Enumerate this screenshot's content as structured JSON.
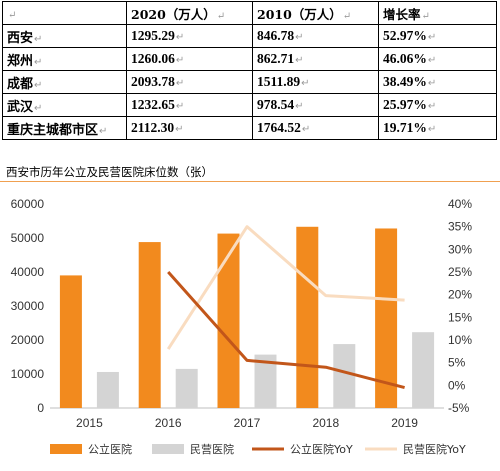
{
  "table": {
    "mark": "↵",
    "header": [
      "",
      "2020（万人）",
      "2010（万人）",
      "增长率"
    ],
    "rows": [
      [
        "西安",
        "1295.29",
        "846.78",
        "52.97%"
      ],
      [
        "郑州",
        "1260.06",
        "862.71",
        "46.06%"
      ],
      [
        "成都",
        "2093.78",
        "1511.89",
        "38.49%"
      ],
      [
        "武汉",
        "1232.65",
        "978.54",
        "25.97%"
      ],
      [
        "重庆主城都市区",
        "2112.30",
        "1764.52",
        "19.71%"
      ]
    ]
  },
  "chart_data": {
    "type": "bar",
    "title": "西安市历年公立及民营医院床位数（张）",
    "categories": [
      "2015",
      "2016",
      "2017",
      "2018",
      "2019"
    ],
    "series": [
      {
        "name": "公立医院",
        "kind": "bar",
        "axis": "left",
        "values": [
          39000,
          48800,
          51300,
          53300,
          52800
        ]
      },
      {
        "name": "民营医院",
        "kind": "bar",
        "axis": "left",
        "values": [
          10600,
          11500,
          15700,
          18800,
          22300
        ]
      },
      {
        "name": "公立医院YoY",
        "kind": "line",
        "axis": "right",
        "values": [
          null,
          25.0,
          5.5,
          4.0,
          -0.5
        ]
      },
      {
        "name": "民营医院YoY",
        "kind": "line",
        "axis": "right",
        "values": [
          null,
          8.0,
          35.0,
          19.8,
          18.8
        ]
      }
    ],
    "ylim": [
      0,
      60000
    ],
    "yticks": [
      "0",
      "10000",
      "20000",
      "30000",
      "40000",
      "50000",
      "60000"
    ],
    "y2lim": [
      -5,
      40
    ],
    "y2ticks": [
      "-5%",
      "0%",
      "5%",
      "10%",
      "15%",
      "20%",
      "25%",
      "30%",
      "35%",
      "40%"
    ],
    "legend": "bottom",
    "colors": {
      "public_bar": "#f28a1e",
      "private_bar": "#d4d4d4",
      "public_line": "#c2561a",
      "private_line": "#f9dcc0"
    }
  }
}
